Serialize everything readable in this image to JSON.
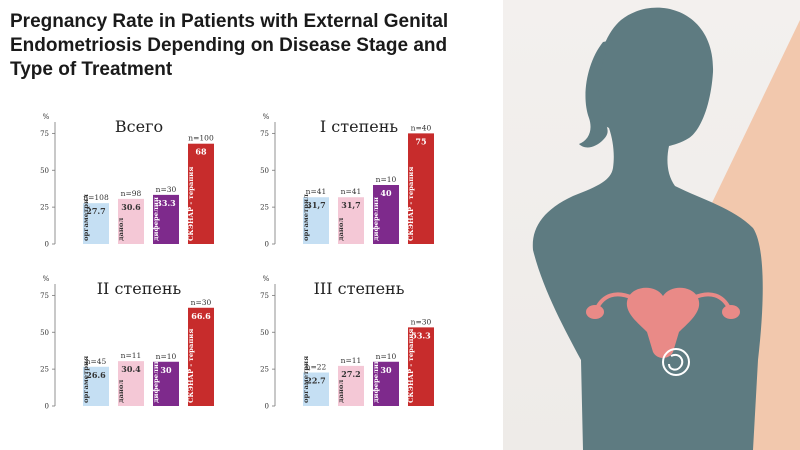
{
  "title": "Pregnancy Rate in Patients with External Genital Endometriosis Depending on Disease Stage and Type of Treatment",
  "colors": {
    "orgametril": "#c5dff3",
    "danol": "#f4c8d6",
    "diferelin": "#7e2a8c",
    "scenar": "#c72c2c",
    "silhouette": "#5e7b81",
    "uterus": "#e98a87"
  },
  "chart_data": [
    {
      "type": "bar",
      "title": "Всего",
      "ylabel": "%",
      "yticks": [
        0,
        25,
        50,
        75
      ],
      "ylim": [
        0,
        80
      ],
      "categories": [
        "оргаметрил",
        "данол",
        "диферелин",
        "СКЭНАР - терапия"
      ],
      "values": [
        27.7,
        30.6,
        33.3,
        68
      ],
      "value_labels": [
        "27.7",
        "30.6",
        "33.3",
        "68"
      ],
      "n_labels": [
        "n=108",
        "n=98",
        "n=30",
        "n=100"
      ]
    },
    {
      "type": "bar",
      "title": "I степень",
      "ylabel": "%",
      "yticks": [
        0,
        25,
        50,
        75
      ],
      "ylim": [
        0,
        80
      ],
      "categories": [
        "оргаметрил",
        "данол",
        "диферелин",
        "СКЭНАР - терапия"
      ],
      "values": [
        31.7,
        31.7,
        40,
        75
      ],
      "value_labels": [
        "31,7",
        "31,7",
        "40",
        "75"
      ],
      "n_labels": [
        "n=41",
        "n=41",
        "n=10",
        "n=40"
      ]
    },
    {
      "type": "bar",
      "title": "II степень",
      "ylabel": "%",
      "yticks": [
        0,
        25,
        50,
        75
      ],
      "ylim": [
        0,
        80
      ],
      "categories": [
        "оргаметрия",
        "данол",
        "диферелин",
        "СКЭНАР - терапия"
      ],
      "values": [
        26.6,
        30.4,
        30,
        66.6
      ],
      "value_labels": [
        "26.6",
        "30.4",
        "30",
        "66.6"
      ],
      "n_labels": [
        "n=45",
        "n=11",
        "n=10",
        "n=30"
      ]
    },
    {
      "type": "bar",
      "title": "III степень",
      "ylabel": "%",
      "yticks": [
        0,
        25,
        50,
        75
      ],
      "ylim": [
        0,
        80
      ],
      "categories": [
        "оргаметрия",
        "данол",
        "диферелин",
        "СКЭНАР - терапия"
      ],
      "values": [
        22.7,
        27.2,
        30,
        53.3
      ],
      "value_labels": [
        "22.7",
        "27.2",
        "30",
        "53.3"
      ],
      "n_labels": [
        "n=22",
        "n=11",
        "n=10",
        "n=30"
      ]
    }
  ]
}
